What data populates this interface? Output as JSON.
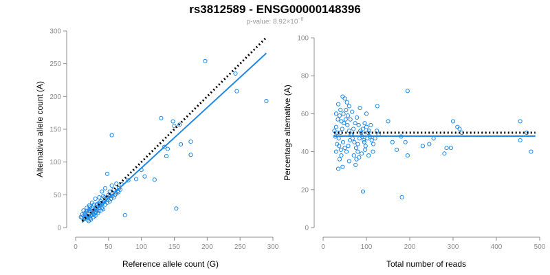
{
  "header": {
    "title": "rs3812589 - ENSG00000148396",
    "subtitle_prefix": "p-value: 8.92×10",
    "subtitle_exponent": "−8"
  },
  "colors": {
    "points": "#1e88e5",
    "fit": "#1e88e5",
    "reference": "#000000",
    "axis": "#8c8c8c"
  },
  "chart_data": [
    {
      "type": "scatter",
      "xlabel": "Reference allele count (G)",
      "ylabel": "Alternative allele count (A)",
      "xlim": [
        0,
        300
      ],
      "ylim": [
        0,
        300
      ],
      "xticks": [
        0,
        50,
        100,
        150,
        200,
        250,
        300
      ],
      "yticks": [
        0,
        50,
        100,
        150,
        200,
        250,
        300
      ],
      "reference_line": {
        "style": "dotted",
        "from": [
          10,
          10
        ],
        "to": [
          290,
          290
        ]
      },
      "fit_line": {
        "style": "solid",
        "from": [
          10,
          8
        ],
        "to": [
          290,
          266
        ]
      },
      "points": [
        [
          197,
          254
        ],
        [
          243,
          235
        ],
        [
          245,
          208
        ],
        [
          290,
          193
        ],
        [
          55,
          141
        ],
        [
          130,
          167
        ],
        [
          148,
          162
        ],
        [
          150,
          155
        ],
        [
          158,
          157
        ],
        [
          175,
          131
        ],
        [
          160,
          127
        ],
        [
          175,
          111
        ],
        [
          140,
          120
        ],
        [
          138,
          109
        ],
        [
          135,
          123
        ],
        [
          120,
          73
        ],
        [
          100,
          88
        ],
        [
          105,
          78
        ],
        [
          92,
          74
        ],
        [
          75,
          19
        ],
        [
          153,
          29
        ],
        [
          80,
          72
        ],
        [
          48,
          82
        ],
        [
          55,
          64
        ],
        [
          62,
          67
        ],
        [
          70,
          66
        ],
        [
          58,
          58
        ],
        [
          65,
          54
        ],
        [
          52,
          55
        ],
        [
          45,
          60
        ],
        [
          40,
          55
        ],
        [
          42,
          48
        ],
        [
          50,
          50
        ],
        [
          36,
          46
        ],
        [
          38,
          40
        ],
        [
          30,
          44
        ],
        [
          33,
          36
        ],
        [
          28,
          35
        ],
        [
          25,
          38
        ],
        [
          22,
          32
        ],
        [
          20,
          28
        ],
        [
          18,
          25
        ],
        [
          15,
          20
        ],
        [
          12,
          18
        ],
        [
          10,
          15
        ],
        [
          14,
          14
        ],
        [
          16,
          16
        ],
        [
          18,
          12
        ],
        [
          20,
          10
        ],
        [
          22,
          14
        ],
        [
          24,
          18
        ],
        [
          26,
          22
        ],
        [
          28,
          26
        ],
        [
          30,
          30
        ],
        [
          32,
          28
        ],
        [
          34,
          32
        ],
        [
          36,
          30
        ],
        [
          38,
          34
        ],
        [
          40,
          36
        ],
        [
          42,
          38
        ],
        [
          44,
          40
        ],
        [
          46,
          44
        ],
        [
          48,
          46
        ],
        [
          50,
          42
        ],
        [
          52,
          40
        ],
        [
          54,
          44
        ],
        [
          56,
          48
        ],
        [
          58,
          46
        ],
        [
          60,
          50
        ],
        [
          62,
          52
        ],
        [
          64,
          56
        ],
        [
          66,
          60
        ],
        [
          68,
          58
        ],
        [
          45,
          35
        ],
        [
          40,
          30
        ],
        [
          35,
          25
        ],
        [
          30,
          22
        ],
        [
          25,
          20
        ],
        [
          20,
          18
        ],
        [
          18,
          22
        ],
        [
          16,
          24
        ],
        [
          14,
          22
        ],
        [
          12,
          26
        ],
        [
          10,
          20
        ],
        [
          8,
          16
        ],
        [
          22,
          26
        ],
        [
          26,
          30
        ],
        [
          32,
          34
        ],
        [
          36,
          38
        ],
        [
          44,
          46
        ],
        [
          48,
          38
        ],
        [
          52,
          48
        ],
        [
          56,
          52
        ],
        [
          28,
          20
        ],
        [
          24,
          28
        ],
        [
          30,
          18
        ],
        [
          34,
          22
        ],
        [
          38,
          26
        ],
        [
          42,
          28
        ],
        [
          19,
          15
        ],
        [
          23,
          12
        ],
        [
          27,
          16
        ],
        [
          31,
          24
        ],
        [
          17,
          30
        ],
        [
          21,
          34
        ]
      ]
    },
    {
      "type": "scatter",
      "xlabel": "Total number of reads",
      "ylabel": "Percentage alternative (A)",
      "xlim": [
        0,
        500
      ],
      "ylim": [
        0,
        100
      ],
      "xticks": [
        0,
        100,
        200,
        300,
        400,
        500
      ],
      "yticks": [
        0,
        20,
        40,
        60,
        80,
        100
      ],
      "reference_line": {
        "style": "dotted",
        "from": [
          25,
          50
        ],
        "to": [
          490,
          50
        ]
      },
      "fit_line": {
        "style": "solid",
        "from": [
          25,
          48.2
        ],
        "to": [
          490,
          48.2
        ]
      },
      "points": [
        [
          195,
          72
        ],
        [
          92,
          19
        ],
        [
          182,
          16
        ],
        [
          125,
          64
        ],
        [
          45,
          69
        ],
        [
          50,
          68
        ],
        [
          35,
          65
        ],
        [
          40,
          62
        ],
        [
          55,
          66
        ],
        [
          60,
          64
        ],
        [
          30,
          60
        ],
        [
          85,
          63
        ],
        [
          100,
          60
        ],
        [
          150,
          56
        ],
        [
          300,
          56
        ],
        [
          455,
          56
        ],
        [
          310,
          53
        ],
        [
          315,
          52
        ],
        [
          320,
          50
        ],
        [
          470,
          50
        ],
        [
          455,
          46
        ],
        [
          480,
          40
        ],
        [
          255,
          47
        ],
        [
          245,
          44
        ],
        [
          230,
          43
        ],
        [
          285,
          42
        ],
        [
          295,
          42
        ],
        [
          280,
          39
        ],
        [
          195,
          38
        ],
        [
          170,
          41
        ],
        [
          180,
          48
        ],
        [
          190,
          45
        ],
        [
          160,
          45
        ],
        [
          115,
          40
        ],
        [
          105,
          38
        ],
        [
          95,
          45
        ],
        [
          80,
          40
        ],
        [
          75,
          33
        ],
        [
          60,
          35
        ],
        [
          45,
          32
        ],
        [
          35,
          31
        ],
        [
          38,
          36
        ],
        [
          42,
          38
        ],
        [
          30,
          40
        ],
        [
          32,
          44
        ],
        [
          36,
          47
        ],
        [
          40,
          50
        ],
        [
          44,
          52
        ],
        [
          48,
          55
        ],
        [
          52,
          57
        ],
        [
          56,
          54
        ],
        [
          60,
          51
        ],
        [
          64,
          49
        ],
        [
          68,
          47
        ],
        [
          72,
          45
        ],
        [
          76,
          42
        ],
        [
          80,
          44
        ],
        [
          84,
          47
        ],
        [
          88,
          50
        ],
        [
          92,
          52
        ],
        [
          96,
          55
        ],
        [
          100,
          53
        ],
        [
          104,
          50
        ],
        [
          108,
          48
        ],
        [
          112,
          46
        ],
        [
          116,
          44
        ],
        [
          120,
          47
        ],
        [
          124,
          51
        ],
        [
          128,
          49
        ],
        [
          30,
          53
        ],
        [
          34,
          57
        ],
        [
          38,
          59
        ],
        [
          42,
          56
        ],
        [
          46,
          45
        ],
        [
          50,
          42
        ],
        [
          54,
          40
        ],
        [
          58,
          43
        ],
        [
          62,
          46
        ],
        [
          66,
          49
        ],
        [
          70,
          52
        ],
        [
          74,
          55
        ],
        [
          78,
          58
        ],
        [
          82,
          54
        ],
        [
          86,
          51
        ],
        [
          90,
          48
        ],
        [
          94,
          46
        ],
        [
          98,
          43
        ],
        [
          102,
          47
        ],
        [
          106,
          51
        ],
        [
          110,
          54
        ],
        [
          28,
          48
        ],
        [
          26,
          51
        ],
        [
          33,
          50
        ],
        [
          37,
          43
        ],
        [
          41,
          41
        ],
        [
          47,
          60
        ],
        [
          53,
          62
        ],
        [
          57,
          59
        ],
        [
          63,
          57
        ],
        [
          67,
          61
        ],
        [
          71,
          38
        ],
        [
          77,
          36
        ],
        [
          83,
          37
        ],
        [
          89,
          39
        ],
        [
          97,
          41
        ]
      ]
    }
  ]
}
